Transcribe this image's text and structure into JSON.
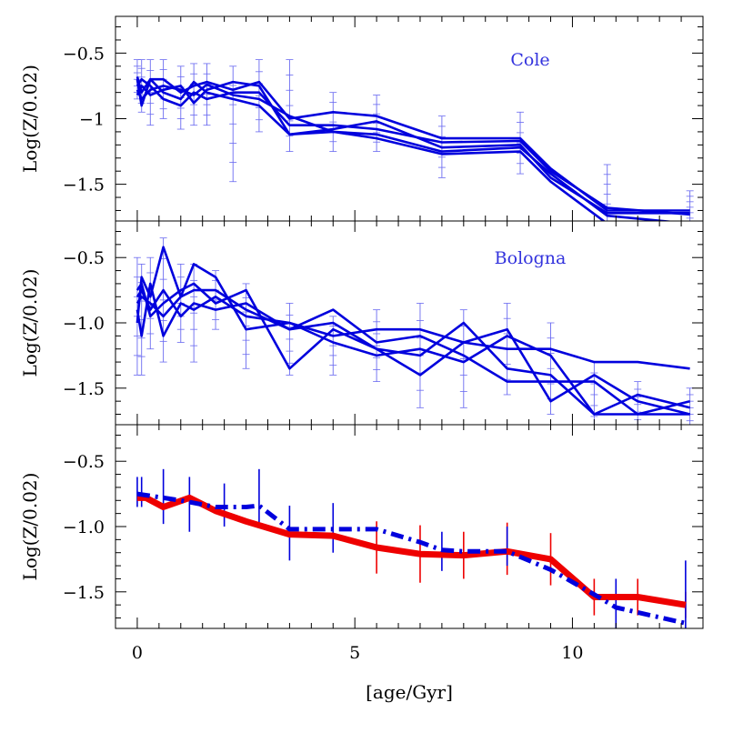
{
  "chart_data": {
    "type": "line",
    "xlabel": "[age/Gyr]",
    "x_tick_labels": [
      "0",
      "5",
      "10"
    ],
    "x_ticks": [
      0,
      5,
      10
    ],
    "xlim": [
      -0.5,
      13.0
    ],
    "colors": {
      "blue": "#0000dd",
      "light_blue": "#6a6af0",
      "red": "#ee0000"
    },
    "panels": [
      {
        "label": "Cole",
        "ylabel": "Log(Z/0.02)",
        "ylim": [
          -1.78,
          -0.22
        ],
        "y_ticks": [
          -0.5,
          -1.0,
          -1.5
        ],
        "y_tick_labels": [
          "−0.5",
          "−1",
          "−1.5"
        ],
        "series": [
          {
            "x": [
              0,
              0.1,
              0.3,
              0.6,
              1.0,
              1.3,
              1.6,
              2.2,
              2.8,
              3.5,
              4.5,
              5.5,
              7.0,
              8.8,
              9.5,
              10.8,
              12.7
            ],
            "y": [
              -0.7,
              -0.9,
              -0.7,
              -0.7,
              -0.8,
              -0.75,
              -0.72,
              -0.78,
              -0.72,
              -1.0,
              -0.95,
              -0.98,
              -1.15,
              -1.15,
              -1.38,
              -1.7,
              -1.7
            ]
          },
          {
            "x": [
              0,
              0.1,
              0.3,
              0.6,
              1.0,
              1.3,
              1.6,
              2.2,
              2.8,
              3.5,
              4.5,
              5.5,
              7.0,
              8.8,
              9.5,
              10.8,
              12.7
            ],
            "y": [
              -0.75,
              -0.7,
              -0.75,
              -0.85,
              -0.9,
              -0.8,
              -0.85,
              -0.8,
              -0.8,
              -1.05,
              -1.05,
              -1.08,
              -1.18,
              -1.17,
              -1.4,
              -1.68,
              -1.73
            ]
          },
          {
            "x": [
              0,
              0.1,
              0.3,
              0.6,
              1.0,
              1.3,
              1.6,
              2.2,
              2.8,
              3.5,
              4.5,
              5.5,
              7.0,
              8.8,
              9.5,
              10.8,
              12.7
            ],
            "y": [
              -0.82,
              -0.75,
              -0.82,
              -0.78,
              -0.75,
              -0.88,
              -0.78,
              -0.72,
              -0.75,
              -1.12,
              -1.08,
              -1.02,
              -1.22,
              -1.2,
              -1.45,
              -1.72,
              -1.72
            ]
          },
          {
            "x": [
              0,
              0.1,
              0.3,
              0.6,
              1.0,
              1.3,
              1.6,
              2.2,
              2.8,
              3.5,
              4.5,
              5.5,
              7.0,
              8.8,
              9.5,
              10.8,
              12.7
            ],
            "y": [
              -0.68,
              -0.8,
              -0.7,
              -0.8,
              -0.85,
              -0.72,
              -0.8,
              -0.85,
              -0.9,
              -1.12,
              -1.1,
              -1.12,
              -1.25,
              -1.22,
              -1.42,
              -1.74,
              -1.8
            ]
          },
          {
            "x": [
              0,
              0.1,
              0.3,
              0.6,
              1.0,
              1.3,
              1.6,
              2.2,
              2.8,
              3.5,
              4.5,
              5.5,
              7.0,
              8.8,
              9.5,
              10.8,
              12.7
            ],
            "y": [
              -0.78,
              -0.85,
              -0.78,
              -0.75,
              -0.78,
              -0.82,
              -0.74,
              -0.82,
              -0.85,
              -0.98,
              -1.1,
              -1.15,
              -1.27,
              -1.25,
              -1.48,
              -1.8,
              -1.85
            ]
          }
        ],
        "error_bars": {
          "x": [
            0,
            0.1,
            0.3,
            0.6,
            1.0,
            1.3,
            1.6,
            2.2,
            2.8,
            3.5,
            4.5,
            5.5,
            7.0,
            8.8,
            10.8,
            12.7
          ],
          "low": [
            -0.85,
            -0.95,
            -1.05,
            -1.0,
            -1.08,
            -1.05,
            -1.05,
            -1.48,
            -1.1,
            -1.25,
            -1.25,
            -1.25,
            -1.45,
            -1.42,
            -1.8,
            -1.8
          ],
          "high": [
            -0.55,
            -0.55,
            -0.55,
            -0.55,
            -0.6,
            -0.58,
            -0.58,
            -0.6,
            -0.55,
            -0.55,
            -0.8,
            -0.82,
            -0.98,
            -0.95,
            -1.35,
            -1.55
          ]
        }
      },
      {
        "label": "Bologna",
        "ylabel": "Log(Z/0.02)",
        "ylim": [
          -1.78,
          -0.22
        ],
        "y_ticks": [
          -0.5,
          -1.0,
          -1.5
        ],
        "y_tick_labels": [
          "−0.5",
          "−1.0",
          "−1.5"
        ],
        "series": [
          {
            "x": [
              0,
              0.1,
              0.3,
              0.6,
              1.0,
              1.3,
              1.8,
              2.5,
              3.5,
              4.5,
              5.5,
              6.5,
              7.5,
              8.5,
              9.5,
              10.5,
              11.5,
              12.7
            ],
            "y": [
              -1.0,
              -0.65,
              -0.8,
              -0.42,
              -0.8,
              -0.55,
              -0.65,
              -1.05,
              -1.0,
              -1.1,
              -1.05,
              -1.05,
              -1.15,
              -1.2,
              -1.2,
              -1.3,
              -1.3,
              -1.35
            ]
          },
          {
            "x": [
              0,
              0.1,
              0.3,
              0.6,
              1.0,
              1.3,
              1.8,
              2.5,
              3.5,
              4.5,
              5.5,
              6.5,
              7.5,
              8.5,
              9.5,
              10.5,
              11.5,
              12.7
            ],
            "y": [
              -0.75,
              -0.7,
              -0.95,
              -0.85,
              -0.75,
              -0.7,
              -0.85,
              -0.75,
              -1.35,
              -1.05,
              -1.2,
              -1.4,
              -1.15,
              -1.05,
              -1.6,
              -1.4,
              -1.6,
              -1.7
            ]
          },
          {
            "x": [
              0,
              0.1,
              0.3,
              0.6,
              1.0,
              1.3,
              1.8,
              2.5,
              3.5,
              4.5,
              5.5,
              6.5,
              7.5,
              8.5,
              9.5,
              10.5,
              11.5,
              12.7
            ],
            "y": [
              -0.9,
              -1.1,
              -0.7,
              -1.1,
              -0.85,
              -0.9,
              -0.8,
              -0.95,
              -1.0,
              -1.15,
              -1.25,
              -1.2,
              -1.3,
              -1.1,
              -1.25,
              -1.7,
              -1.55,
              -1.65
            ]
          },
          {
            "x": [
              0,
              0.1,
              0.3,
              0.6,
              1.0,
              1.3,
              1.8,
              2.5,
              3.5,
              4.5,
              5.5,
              6.5,
              7.5,
              8.5,
              9.5,
              10.5,
              11.5,
              12.7
            ],
            "y": [
              -0.8,
              -0.75,
              -0.9,
              -0.75,
              -0.95,
              -0.85,
              -0.9,
              -0.85,
              -1.05,
              -1.0,
              -1.2,
              -1.25,
              -1.0,
              -1.35,
              -1.4,
              -1.7,
              -1.7,
              -1.6
            ]
          },
          {
            "x": [
              0,
              0.1,
              0.3,
              0.6,
              1.0,
              1.3,
              1.8,
              2.5,
              3.5,
              4.5,
              5.5,
              6.5,
              7.5,
              8.5,
              9.5,
              10.5,
              11.5,
              12.7
            ],
            "y": [
              -0.85,
              -0.8,
              -0.85,
              -0.95,
              -0.8,
              -0.75,
              -0.75,
              -0.9,
              -1.05,
              -0.9,
              -1.15,
              -1.1,
              -1.25,
              -1.45,
              -1.45,
              -1.45,
              -1.7,
              -1.7
            ]
          }
        ],
        "error_bars": {
          "x": [
            0,
            0.1,
            0.3,
            0.6,
            1.0,
            1.3,
            1.8,
            2.5,
            3.5,
            4.5,
            5.5,
            6.5,
            7.5,
            8.5,
            9.5,
            10.5,
            11.5,
            12.7
          ],
          "low": [
            -1.4,
            -1.4,
            -1.2,
            -1.3,
            -1.15,
            -1.3,
            -1.05,
            -1.35,
            -1.4,
            -1.4,
            -1.45,
            -1.65,
            -1.65,
            -1.55,
            -1.7,
            -1.8,
            -1.8,
            -1.8
          ],
          "high": [
            -0.5,
            -0.55,
            -0.5,
            -0.35,
            -0.55,
            -0.55,
            -0.6,
            -0.7,
            -0.85,
            -0.95,
            -0.9,
            -0.85,
            -0.9,
            -0.85,
            -1.0,
            -1.3,
            -1.45,
            -1.5
          ]
        }
      },
      {
        "label": "",
        "ylabel": "Log(Z/0.02)",
        "ylim": [
          -1.78,
          -0.22
        ],
        "y_ticks": [
          -0.5,
          -1.0,
          -1.5
        ],
        "y_tick_labels": [
          "−0.5",
          "−1.0",
          "−1.5"
        ],
        "series": [
          {
            "style": "solid",
            "color": "red",
            "x": [
              0,
              0.2,
              0.6,
              1.2,
              1.8,
              2.5,
              3.5,
              4.5,
              5.5,
              6.5,
              7.5,
              8.5,
              9.5,
              10.5,
              11.5,
              12.6
            ],
            "y": [
              -0.78,
              -0.78,
              -0.85,
              -0.78,
              -0.88,
              -0.96,
              -1.06,
              -1.07,
              -1.16,
              -1.21,
              -1.22,
              -1.19,
              -1.25,
              -1.54,
              -1.54,
              -1.6
            ]
          },
          {
            "style": "dashdot",
            "color": "blue",
            "x": [
              0,
              0.2,
              0.6,
              1.0,
              1.8,
              2.5,
              2.8,
              3.5,
              4.5,
              5.5,
              6.5,
              7.0,
              7.5,
              8.5,
              9.5,
              10.5,
              11.0,
              12.6
            ],
            "y": [
              -0.75,
              -0.76,
              -0.78,
              -0.8,
              -0.85,
              -0.85,
              -0.84,
              -1.02,
              -1.02,
              -1.02,
              -1.12,
              -1.18,
              -1.19,
              -1.19,
              -1.33,
              -1.52,
              -1.62,
              -1.74
            ]
          }
        ],
        "error_bars_red": {
          "x": [
            5.5,
            6.5,
            7.5,
            8.5,
            9.5,
            10.5,
            11.5,
            12.6
          ],
          "low": [
            -1.36,
            -1.43,
            -1.4,
            -1.37,
            -1.45,
            -1.68,
            -1.68,
            -1.7
          ],
          "high": [
            -0.96,
            -0.99,
            -1.04,
            -0.97,
            -1.05,
            -1.4,
            -1.4,
            -1.5
          ]
        },
        "error_bars_blue": {
          "x": [
            0,
            0.1,
            0.6,
            1.2,
            2.0,
            2.8,
            3.5,
            4.5,
            7.0,
            8.5,
            11.0,
            12.6
          ],
          "low": [
            -0.85,
            -0.85,
            -0.98,
            -1.04,
            -1.0,
            -0.99,
            -1.26,
            -1.2,
            -1.34,
            -1.3,
            -1.78,
            -1.78
          ],
          "high": [
            -0.62,
            -0.62,
            -0.56,
            -0.62,
            -0.67,
            -0.56,
            -0.84,
            -0.82,
            -1.04,
            -1.0,
            -1.4,
            -1.26
          ]
        }
      }
    ]
  }
}
